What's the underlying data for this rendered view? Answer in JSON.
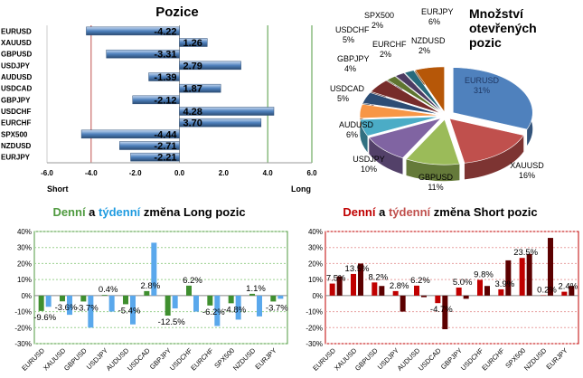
{
  "chart_data": [
    {
      "type": "bar",
      "orientation": "horizontal",
      "title": "Pozice",
      "categories": [
        "EURUSD",
        "XAUUSD",
        "GBPUSD",
        "USDJPY",
        "AUDUSD",
        "USDCAD",
        "GBPJPY",
        "USDCHF",
        "EURCHF",
        "SPX500",
        "NZDUSD",
        "EURJPY"
      ],
      "values": [
        -4.22,
        1.26,
        -3.31,
        2.79,
        -1.39,
        1.87,
        -2.12,
        4.28,
        3.7,
        -4.44,
        -2.71,
        -2.21
      ],
      "value_labels": [
        "-4.22",
        "1.26",
        "-3.31",
        "2.79",
        "-1.39",
        "1.87",
        "-2.12",
        "4.28",
        "3.70",
        "-4.44",
        "-2.71",
        "-2.21"
      ],
      "xlim": [
        -6,
        6
      ],
      "xticks": [
        -6,
        -4,
        -2,
        0,
        2,
        4,
        6
      ],
      "xtick_labels": [
        "-6.0",
        "-4.0",
        "-2.0",
        "0.0",
        "2.0",
        "4.0",
        "6.0"
      ],
      "left_label": "Short",
      "right_label": "Long",
      "colors": {
        "bar": "#4f81bd",
        "bar_light": "#c6d9f1",
        "short_line": "#c0504d",
        "long_line": "#4f9a3f"
      }
    },
    {
      "type": "pie",
      "title_lines": [
        "Množství",
        "otevřených",
        "pozic"
      ],
      "slices": [
        {
          "name": "EURUSD",
          "value": 31,
          "label": "31%",
          "color": "#4f81bd"
        },
        {
          "name": "XAUUSD",
          "value": 16,
          "label": "16%",
          "color": "#c0504d"
        },
        {
          "name": "GBPUSD",
          "value": 11,
          "label": "11%",
          "color": "#9bbb59"
        },
        {
          "name": "USDJPY",
          "value": 10,
          "label": "10%",
          "color": "#8064a2"
        },
        {
          "name": "AUDUSD",
          "value": 6,
          "label": "6%",
          "color": "#4bacc6"
        },
        {
          "name": "USDCAD",
          "value": 5,
          "label": "5%",
          "color": "#f79646"
        },
        {
          "name": "GBPJPY",
          "value": 4,
          "label": "4%",
          "color": "#2c4d75"
        },
        {
          "name": "USDCHF",
          "value": 5,
          "label": "5%",
          "color": "#772c2a"
        },
        {
          "name": "SPX500",
          "value": 2,
          "label": "2%",
          "color": "#5f7530"
        },
        {
          "name": "EURCHF",
          "value": 2,
          "label": "2%",
          "color": "#4d3b62"
        },
        {
          "name": "NZDUSD",
          "value": 2,
          "label": "2%",
          "color": "#276a7c"
        },
        {
          "name": "EURJPY",
          "value": 6,
          "label": "6%",
          "color": "#b65708"
        }
      ]
    },
    {
      "type": "bar",
      "title_parts": [
        {
          "text": "Denní",
          "color": "#4f9a3f"
        },
        {
          "text": " a ",
          "color": "#000000"
        },
        {
          "text": "týdenní",
          "color": "#1f9be0"
        },
        {
          "text": " změna Long pozic",
          "color": "#000000"
        }
      ],
      "categories": [
        "EURUSD",
        "XAUUSD",
        "GBPUSD",
        "USDJPY",
        "AUDUSD",
        "USDCAD",
        "GBPJPY",
        "USDCHF",
        "EURCHF",
        "SPX500",
        "NZDUSD",
        "EURJPY"
      ],
      "series": [
        {
          "name": "Denní",
          "color": "#3f8f2f",
          "values": [
            -9.6,
            -3.6,
            -3.7,
            0.4,
            -5.4,
            2.8,
            -12.5,
            6.2,
            -6.2,
            -4.8,
            1.1,
            -3.7
          ]
        },
        {
          "name": "týdenní",
          "color": "#5aa8ec",
          "values": [
            -7,
            -12,
            -20,
            -10,
            -18,
            33,
            -8,
            -10,
            -19,
            -15,
            -13,
            -2
          ]
        }
      ],
      "data_labels": [
        "-9.6%",
        "-3.6%",
        "-3.7%",
        "0.4%",
        "-5.4%",
        "2.8%",
        "-12.5%",
        "6.2%",
        "-6.2%",
        "-4.8%",
        "1.1%",
        "-3.7%"
      ],
      "ylim": [
        -30,
        40
      ],
      "yticks": [
        -30,
        -20,
        -10,
        0,
        10,
        20,
        30,
        40
      ],
      "ytick_labels": [
        "-30%",
        "-20%",
        "-10%",
        "0%",
        "10%",
        "20%",
        "30%",
        "40%"
      ],
      "colors": {
        "frame": "#4f9a3f",
        "grid": "#9bd08f"
      }
    },
    {
      "type": "bar",
      "title_parts": [
        {
          "text": "Denní",
          "color": "#c00000"
        },
        {
          "text": " a ",
          "color": "#000000"
        },
        {
          "text": "týdenní",
          "color": "#c0504d"
        },
        {
          "text": " změna Short pozic",
          "color": "#000000"
        }
      ],
      "categories": [
        "EURUSD",
        "XAUUSD",
        "GBPUSD",
        "USDJPY",
        "AUDUSD",
        "USDCAD",
        "GBPJPY",
        "USDCHF",
        "EURCHF",
        "SPX500",
        "NZDUSD",
        "EURJPY"
      ],
      "series": [
        {
          "name": "Denní",
          "color": "#c00000",
          "values": [
            7.5,
            13.5,
            8.2,
            2.8,
            6.2,
            -4.7,
            5.0,
            9.8,
            3.9,
            23.5,
            0.2,
            2.4
          ]
        },
        {
          "name": "týdenní",
          "color": "#5c0000",
          "values": [
            12,
            20,
            6,
            -10,
            -1,
            -21,
            -2,
            6,
            22,
            26,
            36,
            6
          ]
        }
      ],
      "data_labels": [
        "7.5%",
        "13.5%",
        "8.2%",
        "2.8%",
        "6.2%",
        "-4.7%",
        "5.0%",
        "9.8%",
        "3.9%",
        "23.5%",
        "0.2%",
        "2.4%"
      ],
      "ylim": [
        -30,
        40
      ],
      "yticks": [
        -30,
        -20,
        -10,
        0,
        10,
        20,
        30,
        40
      ],
      "ytick_labels": [
        "-30%",
        "-20%",
        "-10%",
        "0%",
        "10%",
        "20%",
        "30%",
        "40%"
      ],
      "colors": {
        "frame": "#c00000",
        "grid": "#e8a0a0"
      }
    }
  ]
}
